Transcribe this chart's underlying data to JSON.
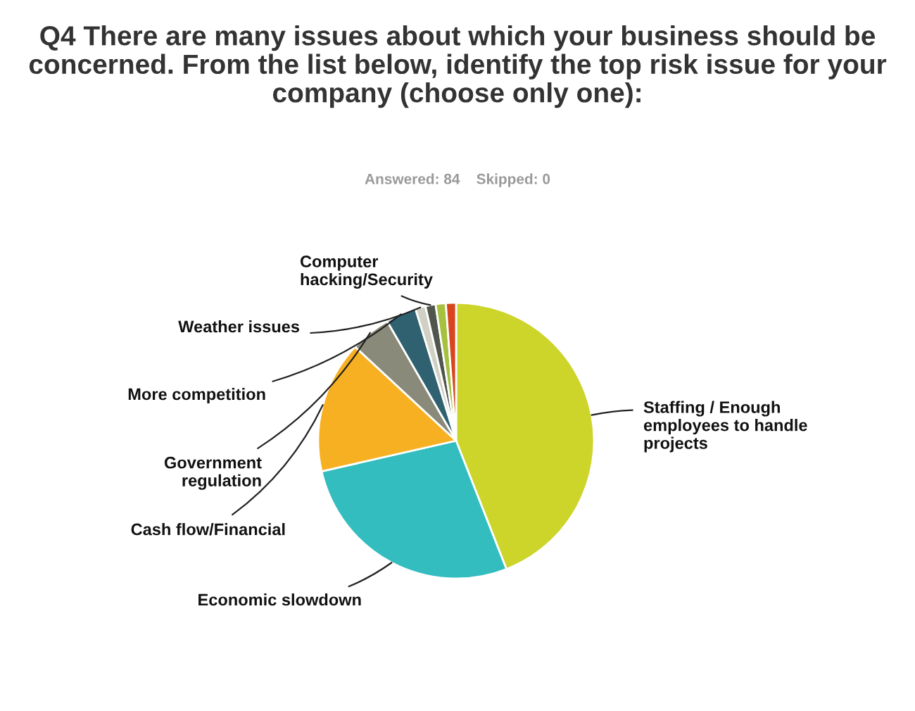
{
  "chart_data": {
    "type": "pie",
    "title": "Q4 There are many issues about which your business should be concerned. From the list below, identify the top risk issue for your company (choose only one):",
    "subtitle": "Answered: 84    Skipped: 0",
    "categories": [
      "Staffing / Enough employees to handle projects",
      "Economic slowdown",
      "Cash flow/Financial",
      "Government regulation",
      "More competition",
      "Weather issues",
      "Computer hacking/Security",
      null,
      null
    ],
    "values": [
      44.05,
      27.38,
      15.48,
      4.76,
      3.57,
      1.19,
      1.19,
      1.19,
      1.19
    ],
    "colors": [
      "#cdd42a",
      "#33bdbf",
      "#f7b021",
      "#8a8a7a",
      "#2f6170",
      "#d0d0c4",
      "#50564c",
      "#a7c03e",
      "#d9451e"
    ]
  }
}
